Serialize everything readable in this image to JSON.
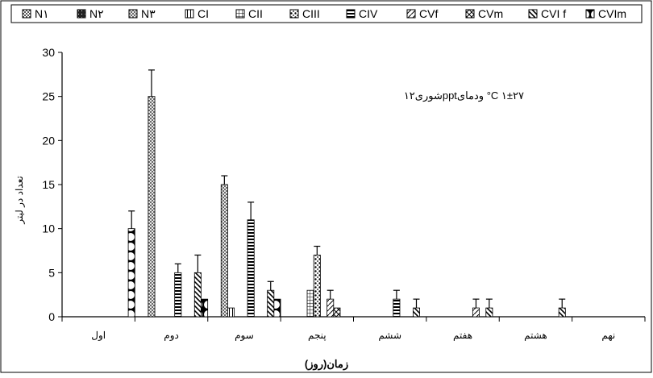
{
  "chart_data": {
    "type": "bar",
    "title": "",
    "annotation": "شوری۱۲pptودمای °C ۱±۲۷",
    "xlabel": "زمان(روز)",
    "ylabel": "تعداد در لیتر",
    "ylim": [
      0,
      30
    ],
    "yticks": [
      0,
      5,
      10,
      15,
      20,
      25,
      30
    ],
    "grid": false,
    "legend_position": "top",
    "categories": [
      "اول",
      "دوم",
      "سوم",
      "پنجم",
      "ششم",
      "هفتم",
      "هشتم",
      "نهم"
    ],
    "series": [
      {
        "name": "N۱",
        "values": [
          0,
          0,
          0,
          0,
          0,
          0,
          0,
          0
        ],
        "errors": [
          0,
          0,
          0,
          0,
          0,
          0,
          0,
          0
        ]
      },
      {
        "name": "N۲",
        "values": [
          0,
          0,
          0,
          0,
          0,
          0,
          0,
          0
        ],
        "errors": [
          0,
          0,
          0,
          0,
          0,
          0,
          0,
          0
        ]
      },
      {
        "name": "N۳",
        "values": [
          0,
          25,
          15,
          0,
          0,
          0,
          0,
          0
        ],
        "errors": [
          0,
          3,
          1,
          0,
          0,
          0,
          0,
          0
        ]
      },
      {
        "name": "CI",
        "values": [
          0,
          0,
          1,
          0,
          0,
          0,
          0,
          0
        ],
        "errors": [
          0,
          0,
          0,
          0,
          0,
          0,
          0,
          0
        ]
      },
      {
        "name": "CII",
        "values": [
          0,
          0,
          0,
          3,
          0,
          0,
          0,
          0
        ],
        "errors": [
          0,
          0,
          0,
          0,
          0,
          0,
          0,
          0
        ]
      },
      {
        "name": "CIII",
        "values": [
          0,
          0,
          0,
          7,
          0,
          0,
          0,
          0
        ],
        "errors": [
          0,
          0,
          0,
          1,
          0,
          0,
          0,
          0
        ]
      },
      {
        "name": "CIV",
        "values": [
          0,
          5,
          11,
          0,
          2,
          0,
          0,
          0
        ],
        "errors": [
          0,
          1,
          2,
          0,
          1,
          0,
          0,
          0
        ]
      },
      {
        "name": "CVf",
        "values": [
          0,
          0,
          0,
          2,
          0,
          1,
          0,
          0
        ],
        "errors": [
          0,
          0,
          0,
          1,
          0,
          1,
          0,
          0
        ]
      },
      {
        "name": "CVm",
        "values": [
          0,
          0,
          0,
          1,
          0,
          0,
          0,
          0
        ],
        "errors": [
          0,
          0,
          0,
          0,
          0,
          0,
          0,
          0
        ]
      },
      {
        "name": "CVI f",
        "values": [
          0,
          5,
          3,
          0,
          1,
          1,
          1,
          0
        ],
        "errors": [
          0,
          2,
          1,
          0,
          1,
          1,
          1,
          0
        ]
      },
      {
        "name": "CVIm",
        "values": [
          10,
          2,
          2,
          0,
          0,
          0,
          0,
          0
        ],
        "errors": [
          2,
          0,
          0,
          0,
          0,
          0,
          0,
          0
        ]
      }
    ]
  }
}
